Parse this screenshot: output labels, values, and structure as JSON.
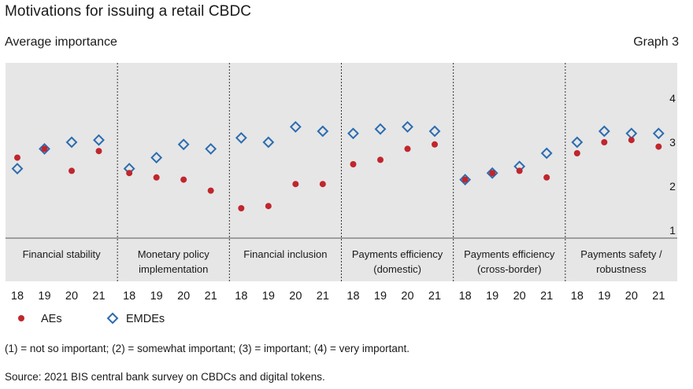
{
  "title": "Motivations for issuing a retail CBDC",
  "subtitle": "Average importance",
  "graph_label": "Graph 3",
  "note": "(1) = not so important; (2) = somewhat important; (3) = important; (4) = very important.",
  "source": "Source: 2021 BIS central bank survey on CBDCs and digital tokens.",
  "colors": {
    "aes": "#c0262d",
    "emdes": "#2b6cb0",
    "panel": "#e6e6e6"
  },
  "chart_data": {
    "type": "scatter",
    "ylim": [
      0.8,
      4.6
    ],
    "yticks": [
      1,
      2,
      3,
      4
    ],
    "years": [
      "18",
      "19",
      "20",
      "21"
    ],
    "groups": [
      [
        "Financial stability"
      ],
      [
        "Monetary policy",
        "implementation"
      ],
      [
        "Financial inclusion"
      ],
      [
        "Payments efficiency",
        "(domestic)"
      ],
      [
        "Payments efficiency",
        "(cross-border)"
      ],
      [
        "Payments safety /",
        "robustness"
      ]
    ],
    "series": [
      {
        "name": "AEs",
        "marker": "dot",
        "values": [
          [
            2.65,
            2.85,
            2.35,
            2.8
          ],
          [
            2.3,
            2.2,
            2.15,
            1.9
          ],
          [
            1.5,
            1.55,
            2.05,
            2.05
          ],
          [
            2.5,
            2.6,
            2.85,
            2.95
          ],
          [
            2.15,
            2.3,
            2.35,
            2.2
          ],
          [
            2.75,
            3.0,
            3.05,
            2.9
          ]
        ]
      },
      {
        "name": "EMDEs",
        "marker": "diamond",
        "values": [
          [
            2.4,
            2.85,
            3.0,
            3.05
          ],
          [
            2.4,
            2.65,
            2.95,
            2.85
          ],
          [
            3.1,
            3.0,
            3.35,
            3.25
          ],
          [
            3.2,
            3.3,
            3.35,
            3.25
          ],
          [
            2.15,
            2.3,
            2.45,
            2.75
          ],
          [
            3.0,
            3.25,
            3.2,
            3.2
          ]
        ]
      }
    ]
  }
}
